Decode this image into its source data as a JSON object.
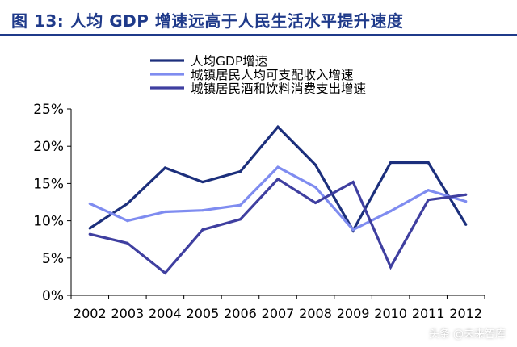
{
  "title": "图 13:  人均 GDP 增速远高于人民生活水平提升速度",
  "watermark": "头条 @未来智库",
  "colors": {
    "title": "#1f3a8a",
    "series": [
      "#1c2f7c",
      "#7f8cf0",
      "#3f3fa0"
    ]
  },
  "chart_data": {
    "type": "line",
    "title": "图 13:  人均 GDP 增速远高于人民生活水平提升速度",
    "x": [
      "2002",
      "2003",
      "2004",
      "2005",
      "2006",
      "2007",
      "2008",
      "2009",
      "2010",
      "2011",
      "2012"
    ],
    "ylim": [
      0,
      25
    ],
    "yticks": [
      "0%",
      "5%",
      "10%",
      "15%",
      "20%",
      "25%"
    ],
    "grid": false,
    "legend_position": "top",
    "series": [
      {
        "name": "人均GDP增速",
        "values": [
          9.0,
          12.3,
          17.1,
          15.2,
          16.6,
          22.6,
          17.5,
          8.7,
          17.8,
          17.8,
          9.5
        ]
      },
      {
        "name": "城镇居民人均可支配收入增速",
        "values": [
          12.3,
          10.0,
          11.2,
          11.4,
          12.1,
          17.2,
          14.5,
          8.8,
          11.3,
          14.1,
          12.6
        ]
      },
      {
        "name": "城镇居民酒和饮料消费支出增速",
        "values": [
          8.2,
          7.0,
          3.0,
          8.8,
          10.2,
          15.6,
          12.4,
          15.2,
          3.8,
          12.8,
          13.5
        ]
      }
    ]
  }
}
